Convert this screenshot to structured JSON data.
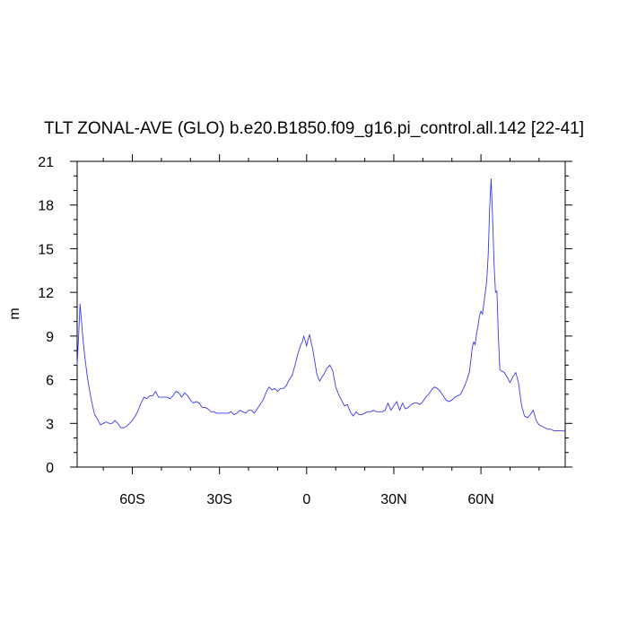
{
  "chart_data": {
    "type": "line",
    "title": "TLT ZONAL-AVE (GLO) b.e20.B1850.f09_g16.pi_control.all.142 [22-41]",
    "xlabel": "",
    "ylabel": "m",
    "xlim": [
      -79,
      89
    ],
    "ylim": [
      0,
      21
    ],
    "x_ticks": [
      -60,
      -30,
      0,
      30,
      60
    ],
    "x_tick_labels": [
      "60S",
      "30S",
      "0",
      "30N",
      "60N"
    ],
    "y_ticks": [
      0,
      3,
      6,
      9,
      12,
      15,
      18,
      21
    ],
    "y_tick_labels": [
      "0",
      "3",
      "6",
      "9",
      "12",
      "15",
      "18",
      "21"
    ],
    "line_color": "#3b3bf0",
    "grid": false,
    "series": [
      {
        "x": [
          -79,
          -78.5,
          -78,
          -77.5,
          -77,
          -76.5,
          -76,
          -75.5,
          -75,
          -74.5,
          -74,
          -73,
          -72,
          -71,
          -70,
          -69,
          -68,
          -67,
          -66,
          -65,
          -64,
          -63,
          -62,
          -61,
          -60,
          -59,
          -58,
          -57,
          -56,
          -55,
          -54,
          -53,
          -52,
          -51,
          -50,
          -49,
          -48,
          -47,
          -46,
          -45,
          -44,
          -43,
          -42,
          -41,
          -40,
          -39,
          -38,
          -37,
          -36,
          -35,
          -34,
          -33,
          -32,
          -31,
          -30,
          -29,
          -28,
          -27,
          -26,
          -25,
          -24,
          -23,
          -22,
          -21,
          -20,
          -19,
          -18,
          -17,
          -16,
          -15,
          -14,
          -13,
          -12,
          -11,
          -10,
          -9,
          -8,
          -7,
          -6,
          -5,
          -4,
          -3,
          -2,
          -1.5,
          -1,
          -0.5,
          0,
          0.5,
          1,
          1.5,
          2,
          2.5,
          3,
          3.5,
          4,
          4.5,
          5,
          6,
          7,
          8,
          9,
          10,
          11,
          12,
          13,
          14,
          15,
          16,
          17,
          18,
          19,
          20,
          21,
          22,
          23,
          24,
          25,
          26,
          27,
          28,
          29,
          30,
          31,
          32,
          33,
          34,
          35,
          36,
          37,
          38,
          39,
          40,
          41,
          42,
          43,
          44,
          45,
          46,
          47,
          48,
          49,
          50,
          51,
          52,
          53,
          54,
          55,
          56,
          56.5,
          57,
          57.5,
          58,
          58.5,
          59,
          59.5,
          60,
          60.5,
          61,
          61.5,
          62,
          62.5,
          63,
          63.5,
          64,
          64.5,
          65,
          65.5,
          66,
          66.5,
          67,
          68,
          69,
          70,
          71,
          72,
          73,
          74,
          75,
          76,
          77,
          78,
          79,
          80,
          81,
          82,
          83,
          84,
          85,
          86,
          87,
          88,
          89
        ],
        "y": [
          7.0,
          9.0,
          11.2,
          10.0,
          8.8,
          7.8,
          7.0,
          6.2,
          5.6,
          5.0,
          4.5,
          3.6,
          3.3,
          2.9,
          3.0,
          3.1,
          3.0,
          3.0,
          3.2,
          3.0,
          2.7,
          2.7,
          2.8,
          3.0,
          3.2,
          3.5,
          3.9,
          4.4,
          4.8,
          4.7,
          4.9,
          4.9,
          5.2,
          4.8,
          4.8,
          4.8,
          4.8,
          4.7,
          4.9,
          5.2,
          5.1,
          4.8,
          5.1,
          4.9,
          4.6,
          4.4,
          4.5,
          4.4,
          4.1,
          4.1,
          4.0,
          3.8,
          3.8,
          3.7,
          3.7,
          3.7,
          3.7,
          3.7,
          3.8,
          3.6,
          3.7,
          3.9,
          3.8,
          3.7,
          3.9,
          3.9,
          3.7,
          4.0,
          4.3,
          4.6,
          5.1,
          5.5,
          5.3,
          5.4,
          5.2,
          5.4,
          5.4,
          5.6,
          6.0,
          6.3,
          7.0,
          7.8,
          8.4,
          8.6,
          9.0,
          8.7,
          8.3,
          8.8,
          9.1,
          8.6,
          8.2,
          7.6,
          7.0,
          6.4,
          6.1,
          5.9,
          6.1,
          6.4,
          6.8,
          7.0,
          6.6,
          5.5,
          5.0,
          4.6,
          4.2,
          4.3,
          3.8,
          3.5,
          3.8,
          3.6,
          3.6,
          3.7,
          3.8,
          3.8,
          3.9,
          3.8,
          3.8,
          3.8,
          3.9,
          4.4,
          3.9,
          4.2,
          4.5,
          3.9,
          4.4,
          4.0,
          4.1,
          4.3,
          4.4,
          4.4,
          4.3,
          4.5,
          4.8,
          5.0,
          5.3,
          5.5,
          5.4,
          5.2,
          4.9,
          4.6,
          4.5,
          4.6,
          4.8,
          4.9,
          5.0,
          5.4,
          5.9,
          6.5,
          7.3,
          8.2,
          8.6,
          8.4,
          9.2,
          9.7,
          10.4,
          10.7,
          10.5,
          11.2,
          12.0,
          12.8,
          14.6,
          17.8,
          19.8,
          17.2,
          14.0,
          12.0,
          12.1,
          9.0,
          6.7,
          6.6,
          6.5,
          6.2,
          5.8,
          6.2,
          6.5,
          5.7,
          4.2,
          3.5,
          3.4,
          3.6,
          3.9,
          3.2,
          2.9,
          2.8,
          2.7,
          2.6,
          2.6,
          2.5,
          2.5,
          2.5,
          2.5,
          2.45
        ]
      }
    ]
  }
}
